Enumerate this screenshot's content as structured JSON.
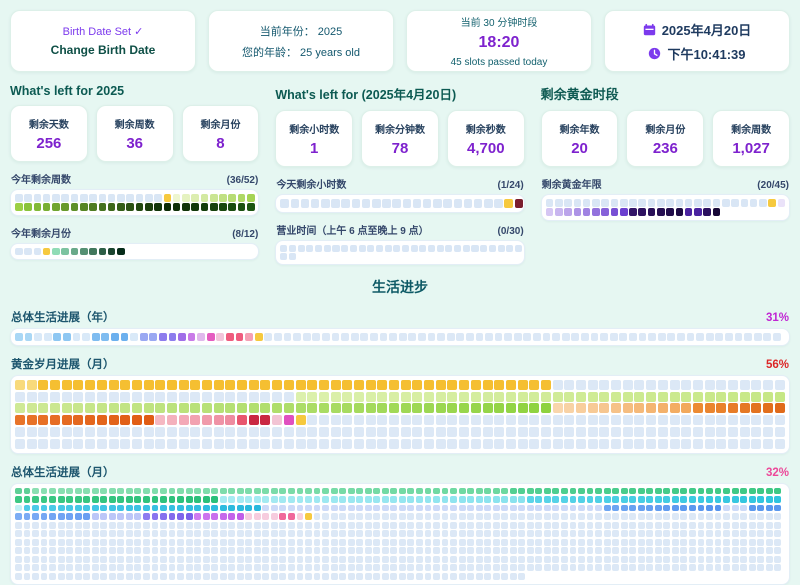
{
  "top_cards": {
    "birth": {
      "status": "Birth Date Set",
      "check": "✓",
      "button": "Change Birth Date"
    },
    "year": {
      "line1": "当前年份： 2025",
      "line2": "您的年龄： 25 years old"
    },
    "slot": {
      "title": "当前 30 分钟时段",
      "value": "18:20",
      "subtitle": "45 slots passed today"
    },
    "datetime": {
      "date": "2025年4月20日",
      "time": "下午10:41:39",
      "icon_color": "#7c3aed"
    }
  },
  "columns": [
    {
      "header": "What's left for 2025",
      "stats": [
        {
          "label": "剩余天数",
          "value": "256"
        },
        {
          "label": "剩余周数",
          "value": "36"
        },
        {
          "label": "剩余月份",
          "value": "8"
        }
      ],
      "bars": [
        {
          "label": "今年剩余周数",
          "count": "(36/52)"
        },
        {
          "label": "今年剩余月份",
          "count": "(8/12)"
        }
      ]
    },
    {
      "header": "What's left for (2025年4月20日)",
      "stats": [
        {
          "label": "剩余小时数",
          "value": "1"
        },
        {
          "label": "剩余分钟数",
          "value": "78"
        },
        {
          "label": "剩余秒数",
          "value": "4,700"
        }
      ],
      "bars": [
        {
          "label": "今天剩余小时数",
          "count": "(1/24)"
        },
        {
          "label": "营业时间（上午 6 点至晚上 9 点）",
          "count": "(0/30)"
        }
      ]
    },
    {
      "header": "剩余黄金时段",
      "stats": [
        {
          "label": "剩余年数",
          "value": "20"
        },
        {
          "label": "剩余月份",
          "value": "236"
        },
        {
          "label": "剩余周数",
          "value": "1,027"
        }
      ],
      "bars": [
        {
          "label": "剩余黄金年限",
          "count": "(20/45)"
        }
      ]
    }
  ],
  "life": {
    "title": "生活进步",
    "sections": [
      {
        "label": "总体生活进展（年）",
        "percent": "31%",
        "percent_color": "#c026d3"
      },
      {
        "label": "黄金岁月进展（月）",
        "percent": "56%",
        "percent_color": "#dc2626"
      },
      {
        "label": "总体生活进展（月）",
        "percent": "32%",
        "percent_color": "#ec4899"
      }
    ]
  },
  "colors": {
    "current_marker": "#f6c93e",
    "future_cell": "#dce8f6",
    "accent_purple": "#7e22ce",
    "teal_heading": "#0c5a52"
  },
  "grids": {
    "weeks52": {
      "cols": 26,
      "size": 7.6,
      "gap": 1.7,
      "cells": [
        [
          "#d9e6f5",
          16
        ],
        [
          "#f6c93e",
          1
        ],
        [
          "#eef6cf",
          "#9ccf45",
          10
        ],
        [
          "#8ac33a",
          "#12350a",
          15
        ],
        [
          "#0d2b06",
          "#1d5511",
          10
        ]
      ]
    },
    "months12": {
      "cols": 26,
      "size": 7.6,
      "gap": 1.7,
      "cells": [
        [
          "#d9e6f5",
          3
        ],
        [
          "#f6c93e",
          1
        ],
        [
          "#90dcb6",
          "#062b19",
          8
        ]
      ]
    },
    "hours24": {
      "cols": 24,
      "size": 8.5,
      "gap": 1.7,
      "cells": [
        [
          "#d9e6f5",
          22
        ],
        [
          "#f6c93e",
          1
        ],
        [
          "#7b1e2e",
          1
        ]
      ]
    },
    "biz30": {
      "cols": 28,
      "size": 7.1,
      "gap": 1.6,
      "cells": [
        [
          "#d9e6f5",
          30
        ]
      ]
    },
    "golden45": {
      "cols": 26,
      "size": 7.6,
      "gap": 1.7,
      "cells": [
        [
          "#d9e6f5",
          24
        ],
        [
          "#f6c93e",
          1
        ],
        [
          "#eae2f9",
          1
        ],
        [
          "#d5c6f3",
          "#6b3fd0",
          9
        ],
        [
          "#321467",
          "#1c0a42",
          6
        ],
        [
          "#4a23a0",
          2
        ],
        [
          "#2a0f5e",
          "#160736",
          2
        ]
      ]
    },
    "years80": {
      "cols": 80,
      "size": 7.8,
      "gap": 1.8,
      "cells": [
        [
          "#a9d7f5",
          2
        ],
        [
          "#d9e9f8",
          2
        ],
        [
          "#8ec7f2",
          2
        ],
        [
          "#d9e9f8",
          2
        ],
        [
          "#7fbcf0",
          2
        ],
        [
          "#6cb0ee",
          2
        ],
        [
          "#d9e9f8",
          1
        ],
        [
          "#9aa8f2",
          2
        ],
        [
          "#8d7ced",
          2
        ],
        [
          "#a06ee8",
          1
        ],
        [
          "#c97ae8",
          1
        ],
        [
          "#e0b8ec",
          1
        ],
        [
          "#e55cc0",
          1
        ],
        [
          "#f2c4da",
          1
        ],
        [
          "#ef5c7e",
          2
        ],
        [
          "#f5a0b4",
          1
        ],
        [
          "#f6c93e",
          1
        ],
        [
          "#dce8f6",
          54
        ]
      ]
    },
    "goldenMonths": {
      "cols": 66,
      "size": 10,
      "gap": 1.7,
      "cells": [
        [
          "#f8da7c",
          2
        ],
        [
          "#f5bf31",
          44
        ],
        [
          "#dce8f6",
          20
        ],
        [
          "#dce8f6",
          24
        ],
        [
          "#dcf0ac",
          "#c6e785",
          42
        ],
        [
          "#cfe996",
          "#8ed23e",
          46
        ],
        [
          "#f9d6ac",
          "#f2a95c",
          12
        ],
        [
          "#ec8a32",
          "#e06a1a",
          8
        ],
        [
          "#e8742a",
          "#e05c14",
          12
        ],
        [
          "#f5b8c2",
          "#ee8ca0",
          7
        ],
        [
          "#e8566e",
          1
        ],
        [
          "#c92842",
          2
        ],
        [
          "#f2c4d4",
          1
        ],
        [
          "#e050c0",
          1
        ],
        [
          "#f6c93e",
          1
        ],
        [
          "#dce8f6",
          41
        ],
        [
          "#dce8f6",
          132
        ]
      ]
    },
    "lifeMonths": {
      "cols": 90,
      "size": 6.9,
      "gap": 1.65,
      "cells": [
        [
          "#5ecf96",
          2
        ],
        [
          "#8adfb2",
          "#6cd8a0",
          56
        ],
        [
          "#52cf92",
          "#3cc884",
          32
        ],
        [
          "#3cc884",
          "#2abf7a",
          24
        ],
        [
          "#a8ebf2",
          "#88e2ee",
          36
        ],
        [
          "#5ad4e8",
          "#2ec4de",
          30
        ],
        [
          "#c2f0f5",
          1
        ],
        [
          "#4ecbe8",
          "#28b8dd",
          28
        ],
        [
          "#ccdaf8",
          40
        ],
        [
          "#6ea6f2",
          "#5694ee",
          14
        ],
        [
          "#ccdaf8",
          3
        ],
        [
          "#5a98ee",
          4
        ],
        [
          "#7cacf4",
          "#6a9ef2",
          9
        ],
        [
          "#bcc6f8",
          6
        ],
        [
          "#8d7af0",
          "#7a60ea",
          6
        ],
        [
          "#cf7af0",
          "#c05ee8",
          6
        ],
        [
          "#f6ccde",
          4
        ],
        [
          "#f0689a",
          2
        ],
        [
          "#f8d0dc",
          1
        ],
        [
          "#f6c93e",
          1
        ],
        [
          "#dce8f6",
          55
        ],
        [
          "#dce8f6",
          600
        ]
      ]
    }
  }
}
